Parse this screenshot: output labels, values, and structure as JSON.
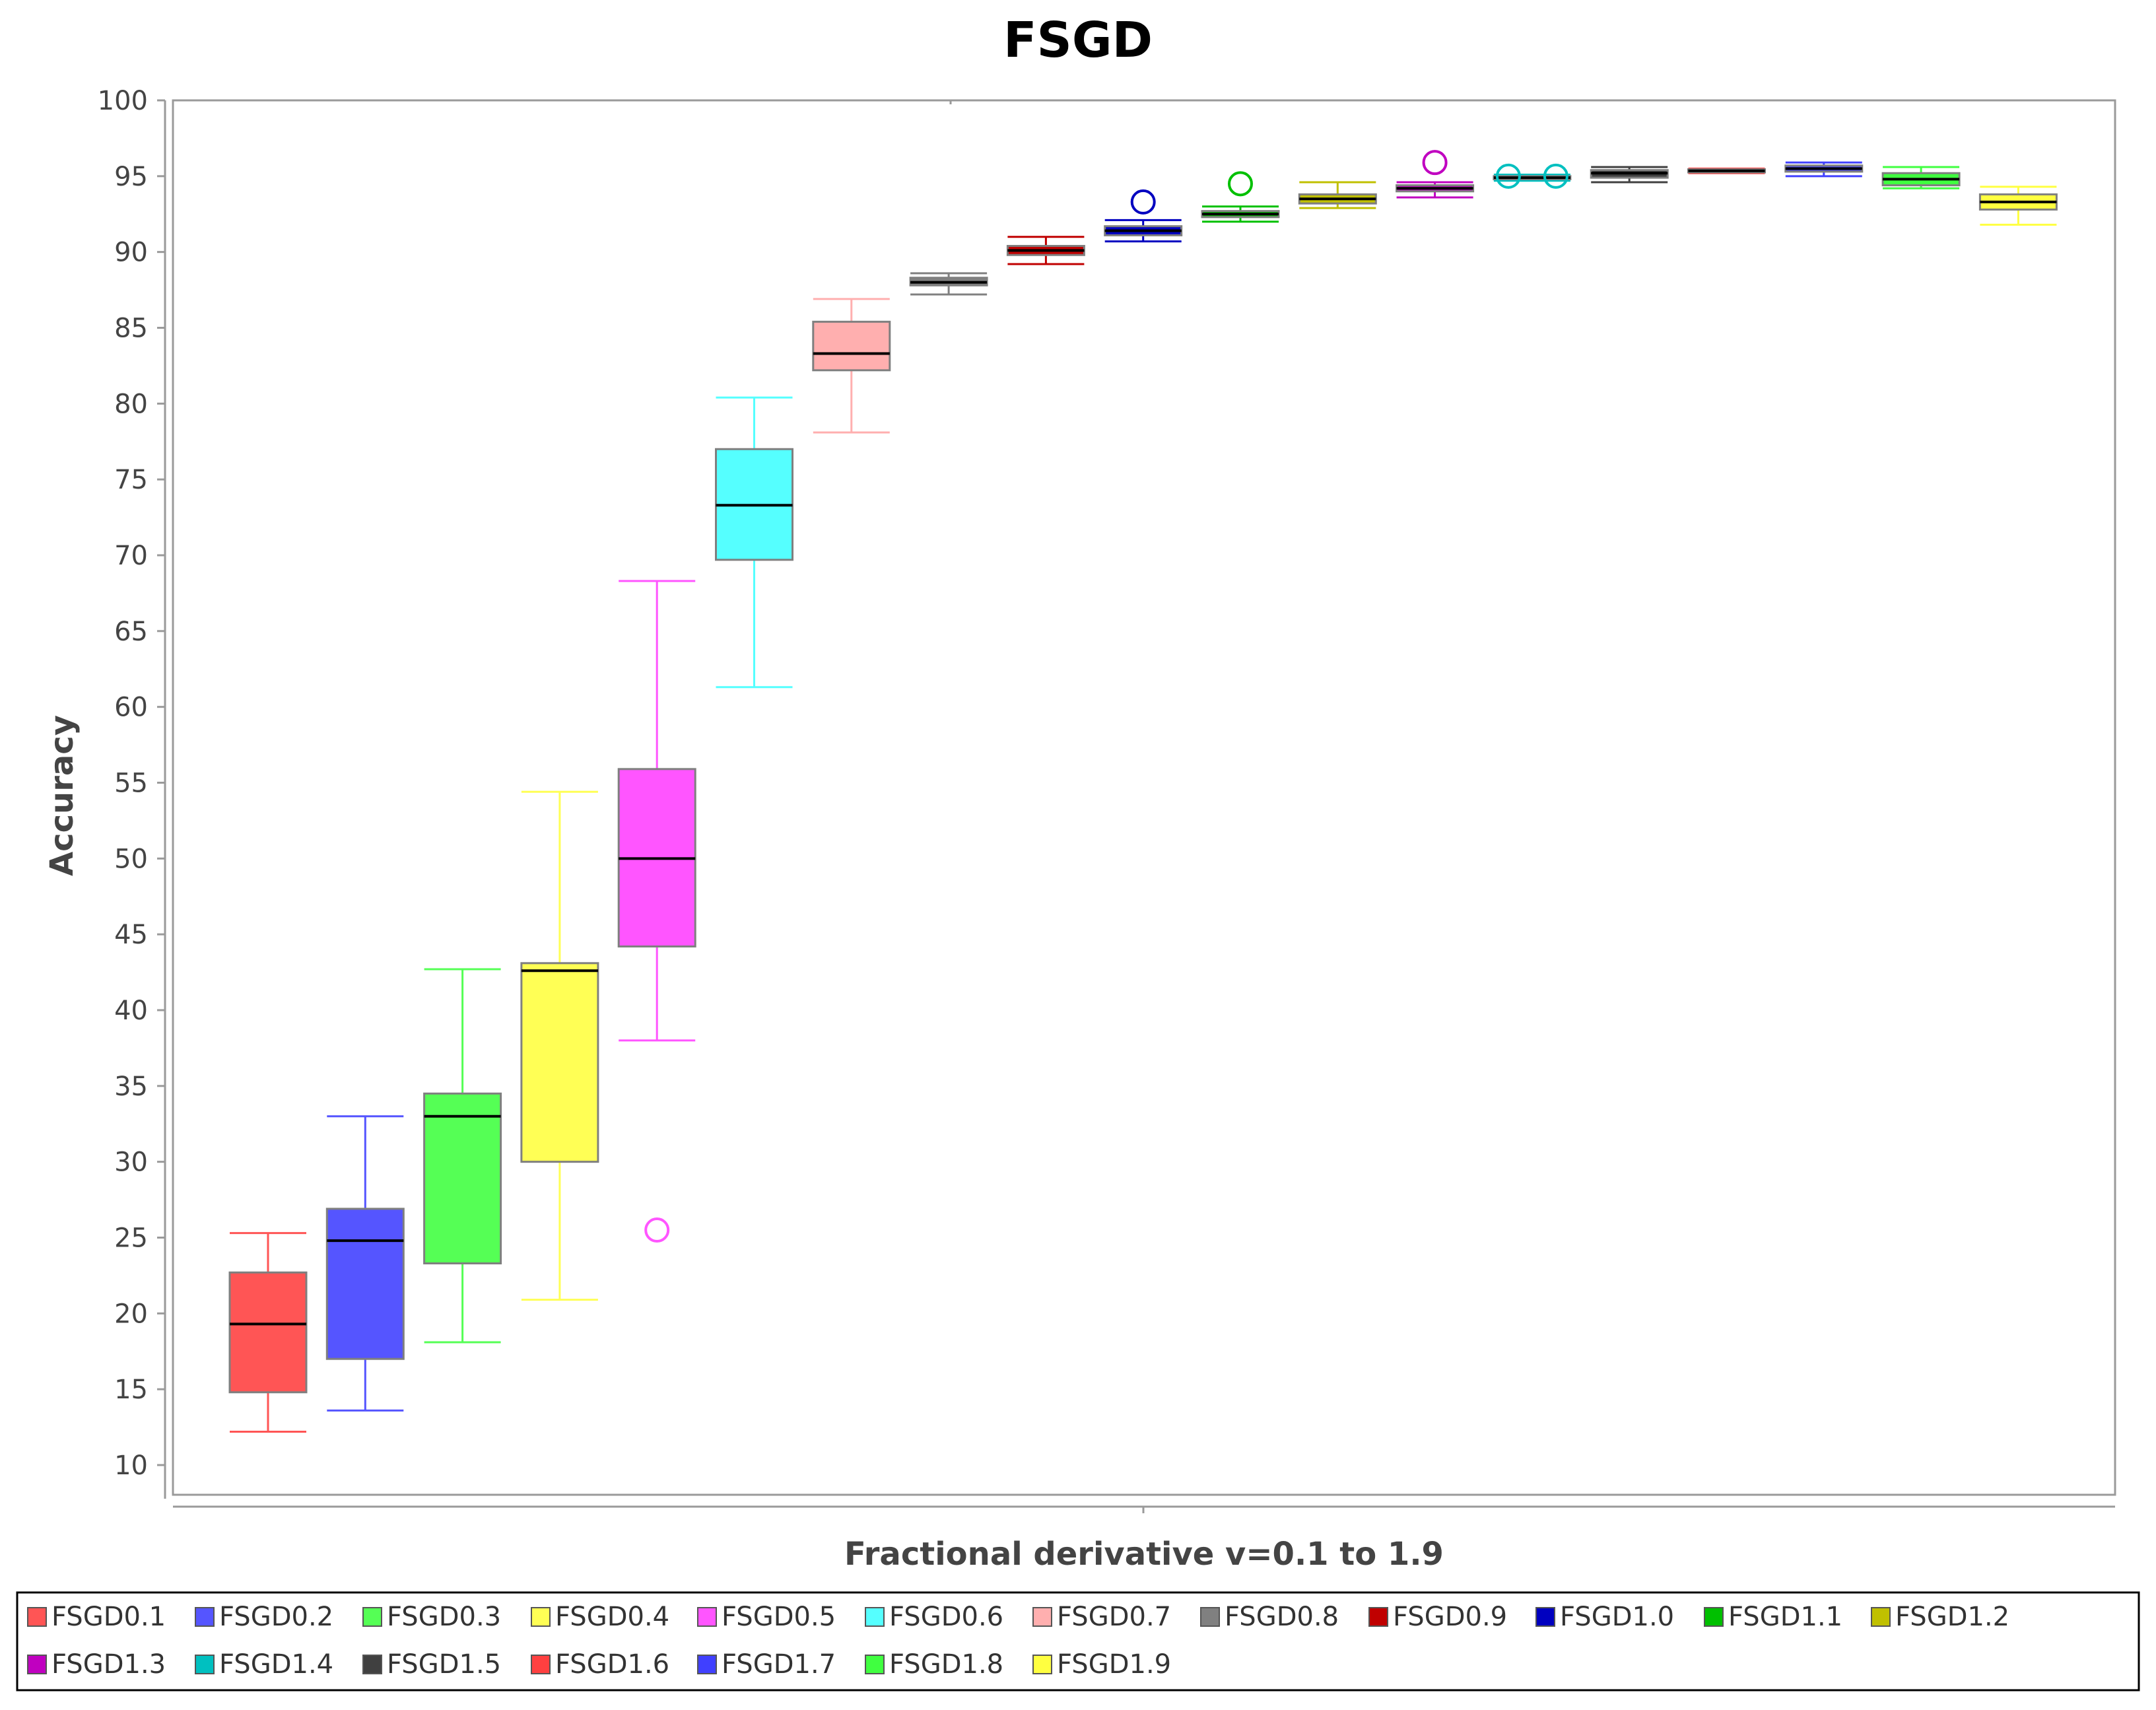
{
  "chart_data": {
    "type": "boxplot",
    "title": "FSGD",
    "xlabel": "Fractional derivative v=0.1 to 1.9",
    "ylabel": "Accuracy",
    "ylim": [
      8,
      100
    ],
    "yticks": [
      10,
      15,
      20,
      25,
      30,
      35,
      40,
      45,
      50,
      55,
      60,
      65,
      70,
      75,
      80,
      85,
      90,
      95,
      100
    ],
    "legend_position": "bottom",
    "series": [
      {
        "name": "FSGD0.1",
        "color": "#ff5555",
        "whisker_color": "#ff5555",
        "min": 12.2,
        "q1": 14.8,
        "median": 19.3,
        "q3": 22.7,
        "max": 25.3,
        "outliers": []
      },
      {
        "name": "FSGD0.2",
        "color": "#5555ff",
        "whisker_color": "#5555ff",
        "min": 13.6,
        "q1": 17.0,
        "median": 24.8,
        "q3": 26.9,
        "max": 33.0,
        "outliers": []
      },
      {
        "name": "FSGD0.3",
        "color": "#55ff55",
        "whisker_color": "#55ff55",
        "min": 18.1,
        "q1": 23.3,
        "median": 33.0,
        "q3": 34.5,
        "max": 42.7,
        "outliers": []
      },
      {
        "name": "FSGD0.4",
        "color": "#ffff55",
        "whisker_color": "#ffff55",
        "min": 20.9,
        "q1": 30.0,
        "median": 42.6,
        "q3": 43.1,
        "max": 54.4,
        "outliers": []
      },
      {
        "name": "FSGD0.5",
        "color": "#ff55ff",
        "whisker_color": "#ff55ff",
        "min": 38.0,
        "q1": 44.2,
        "median": 50.0,
        "q3": 55.9,
        "max": 68.3,
        "outliers": [
          25.5
        ]
      },
      {
        "name": "FSGD0.6",
        "color": "#55ffff",
        "whisker_color": "#55ffff",
        "min": 61.3,
        "q1": 69.7,
        "median": 73.3,
        "q3": 77.0,
        "max": 80.4,
        "outliers": []
      },
      {
        "name": "FSGD0.7",
        "color": "#ffafaf",
        "whisker_color": "#ffafaf",
        "min": 78.1,
        "q1": 82.2,
        "median": 83.3,
        "q3": 85.4,
        "max": 86.9,
        "outliers": []
      },
      {
        "name": "FSGD0.8",
        "color": "#808080",
        "whisker_color": "#808080",
        "min": 87.2,
        "q1": 87.8,
        "median": 88.0,
        "q3": 88.3,
        "max": 88.6,
        "outliers": []
      },
      {
        "name": "FSGD0.9",
        "color": "#c00000",
        "whisker_color": "#c00000",
        "min": 89.2,
        "q1": 89.8,
        "median": 90.1,
        "q3": 90.4,
        "max": 91.0,
        "outliers": []
      },
      {
        "name": "FSGD1.0",
        "color": "#0000c0",
        "whisker_color": "#0000c0",
        "min": 90.7,
        "q1": 91.1,
        "median": 91.4,
        "q3": 91.7,
        "max": 92.1,
        "outliers": [
          93.3
        ]
      },
      {
        "name": "FSGD1.1",
        "color": "#00c000",
        "whisker_color": "#00c000",
        "min": 92.0,
        "q1": 92.3,
        "median": 92.5,
        "q3": 92.7,
        "max": 93.0,
        "outliers": [
          94.5
        ]
      },
      {
        "name": "FSGD1.2",
        "color": "#c0c000",
        "whisker_color": "#c0c000",
        "min": 92.9,
        "q1": 93.2,
        "median": 93.5,
        "q3": 93.8,
        "max": 94.6,
        "outliers": []
      },
      {
        "name": "FSGD1.3",
        "color": "#c000c0",
        "whisker_color": "#c000c0",
        "min": 93.6,
        "q1": 94.0,
        "median": 94.2,
        "q3": 94.4,
        "max": 94.6,
        "outliers": [
          95.9
        ]
      },
      {
        "name": "FSGD1.4",
        "color": "#00c0c0",
        "whisker_color": "#00c0c0",
        "min": 94.7,
        "q1": 94.8,
        "median": 94.9,
        "q3": 95.0,
        "max": 95.1,
        "outliers": [
          95.0,
          95.0
        ]
      },
      {
        "name": "FSGD1.5",
        "color": "#404040",
        "whisker_color": "#404040",
        "min": 94.6,
        "q1": 94.9,
        "median": 95.2,
        "q3": 95.4,
        "max": 95.6,
        "outliers": []
      },
      {
        "name": "FSGD1.6",
        "color": "#ff4040",
        "whisker_color": "#ff4040",
        "min": 95.2,
        "q1": 95.25,
        "median": 95.35,
        "q3": 95.45,
        "max": 95.5,
        "outliers": []
      },
      {
        "name": "FSGD1.7",
        "color": "#4040ff",
        "whisker_color": "#4040ff",
        "min": 95.0,
        "q1": 95.3,
        "median": 95.5,
        "q3": 95.7,
        "max": 95.9,
        "outliers": []
      },
      {
        "name": "FSGD1.8",
        "color": "#40ff40",
        "whisker_color": "#40ff40",
        "min": 94.2,
        "q1": 94.4,
        "median": 94.8,
        "q3": 95.2,
        "max": 95.6,
        "outliers": []
      },
      {
        "name": "FSGD1.9",
        "color": "#ffff40",
        "whisker_color": "#ffff40",
        "min": 91.8,
        "q1": 92.8,
        "median": 93.3,
        "q3": 93.8,
        "max": 94.3,
        "outliers": []
      }
    ]
  }
}
